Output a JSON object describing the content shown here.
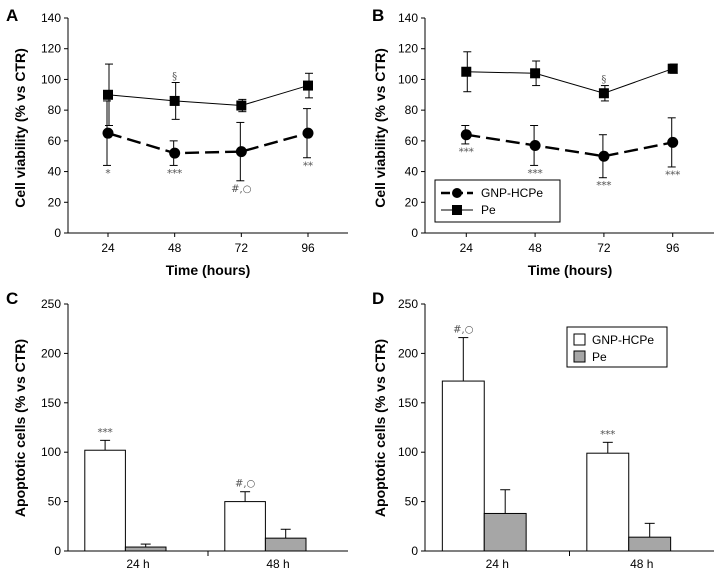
{
  "chart_data": [
    {
      "panel": "A",
      "type": "line",
      "xlabel": "Time (hours)",
      "ylabel": "Cell viability (% vs CTR)",
      "ylim": [
        0,
        140
      ],
      "yticks": [
        "0",
        "20",
        "40",
        "60",
        "80",
        "100",
        "120",
        "140"
      ],
      "categories": [
        "24",
        "48",
        "72",
        "96"
      ],
      "series": [
        {
          "name": "GNP-HCPe",
          "marker": "circle",
          "dash": true,
          "values": [
            65,
            52,
            53,
            65
          ],
          "err": [
            21,
            8,
            19,
            16
          ],
          "annotations": [
            "*",
            "***",
            "#,○",
            "**"
          ],
          "ann_pos": "below"
        },
        {
          "name": "Pe",
          "marker": "square",
          "dash": false,
          "values": [
            90,
            86,
            83,
            96
          ],
          "err": [
            20,
            12,
            4,
            8
          ],
          "annotations": [
            "",
            "§",
            "",
            ""
          ],
          "ann_pos": "above"
        }
      ]
    },
    {
      "panel": "B",
      "type": "line",
      "xlabel": "Time (hours)",
      "ylabel": "Cell viability (% vs CTR)",
      "ylim": [
        0,
        140
      ],
      "yticks": [
        "0",
        "20",
        "40",
        "60",
        "80",
        "100",
        "120",
        "140"
      ],
      "categories": [
        "24",
        "48",
        "72",
        "96"
      ],
      "legend": [
        "GNP-HCPe",
        "Pe"
      ],
      "series": [
        {
          "name": "GNP-HCPe",
          "marker": "circle",
          "dash": true,
          "values": [
            64,
            57,
            50,
            59
          ],
          "err": [
            6,
            13,
            14,
            16
          ],
          "annotations": [
            "***",
            "***",
            "***",
            "***"
          ],
          "ann_pos": "below"
        },
        {
          "name": "Pe",
          "marker": "square",
          "dash": false,
          "values": [
            105,
            104,
            91,
            107
          ],
          "err": [
            13,
            8,
            5,
            3
          ],
          "annotations": [
            "",
            "",
            "§",
            ""
          ],
          "ann_pos": "above"
        }
      ]
    },
    {
      "panel": "C",
      "type": "bar",
      "ylabel": "Apoptotic cells (% vs CTR)",
      "ylim": [
        0,
        250
      ],
      "yticks": [
        "0",
        "50",
        "100",
        "150",
        "200",
        "250"
      ],
      "categories": [
        "24 h",
        "48 h"
      ],
      "series": [
        {
          "name": "GNP-HCPe",
          "color": "#ffffff",
          "values": [
            102,
            50
          ],
          "err": [
            10,
            10
          ],
          "annotations": [
            "***",
            "#,○"
          ]
        },
        {
          "name": "Pe",
          "color": "#a6a6a6",
          "values": [
            4,
            13
          ],
          "err": [
            3,
            9
          ],
          "annotations": [
            "",
            ""
          ]
        }
      ]
    },
    {
      "panel": "D",
      "type": "bar",
      "ylabel": "Apoptotic cells (% vs CTR)",
      "ylim": [
        0,
        250
      ],
      "yticks": [
        "0",
        "50",
        "100",
        "150",
        "200",
        "250"
      ],
      "categories": [
        "24 h",
        "48 h"
      ],
      "legend": [
        "GNP-HCPe",
        "Pe"
      ],
      "series": [
        {
          "name": "GNP-HCPe",
          "color": "#ffffff",
          "values": [
            172,
            99
          ],
          "err": [
            44,
            11
          ],
          "annotations": [
            "#,○",
            "***"
          ]
        },
        {
          "name": "Pe",
          "color": "#a6a6a6",
          "values": [
            38,
            14
          ],
          "err": [
            24,
            14
          ],
          "annotations": [
            "",
            ""
          ]
        }
      ]
    }
  ]
}
